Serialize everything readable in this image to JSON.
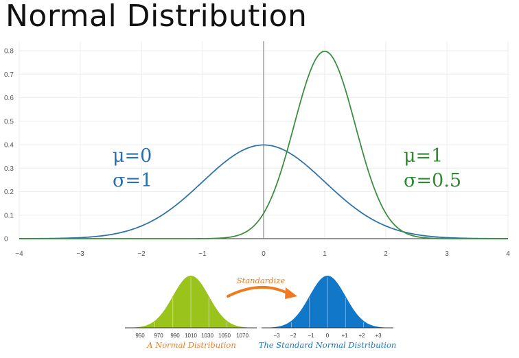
{
  "page": {
    "title": "Normal Distribution"
  },
  "chart_data": [
    {
      "type": "line",
      "title": "Normal Distribution",
      "xlim": [
        -4,
        4
      ],
      "ylim": [
        0,
        0.8
      ],
      "x_ticks": [
        "−4",
        "−3",
        "−2",
        "−1",
        "0",
        "1",
        "2",
        "3",
        "4"
      ],
      "y_ticks": [
        "0",
        "0.1",
        "0.2",
        "0.3",
        "0.4",
        "0.5",
        "0.6",
        "0.7",
        "0.8"
      ],
      "grid": true,
      "series": [
        {
          "color": "#2f73a8",
          "mu": 0,
          "sigma": 1
        },
        {
          "color": "#3b8f3e",
          "mu": 1,
          "sigma": 0.5
        }
      ],
      "annotations": [
        {
          "mu_text": "μ=0",
          "sigma_text": "σ=1",
          "color": "#2a6fb0"
        },
        {
          "mu_text": "μ=1",
          "sigma_text": "σ=0.5",
          "color": "#2f8a2f"
        }
      ]
    },
    {
      "type": "area",
      "caption": "A Normal Distribution",
      "color": "#9ac31c",
      "x_ticks": [
        "950",
        "970",
        "990",
        "1010",
        "1030",
        "1050",
        "1070"
      ],
      "highlight_tick": "1010",
      "mean": 1010,
      "sd": 20
    },
    {
      "type": "area",
      "caption": "The Standard Normal Distribution",
      "color": "#1177c8",
      "x_ticks": [
        "−3",
        "−2",
        "−1",
        "0",
        "+1",
        "+2",
        "+3"
      ],
      "highlight_tick": "0",
      "mean": 0,
      "sd": 1
    }
  ],
  "arrow_label": "Standardize",
  "colors": {
    "orange": "#f07a1f",
    "highlight": "#e03a2f"
  }
}
